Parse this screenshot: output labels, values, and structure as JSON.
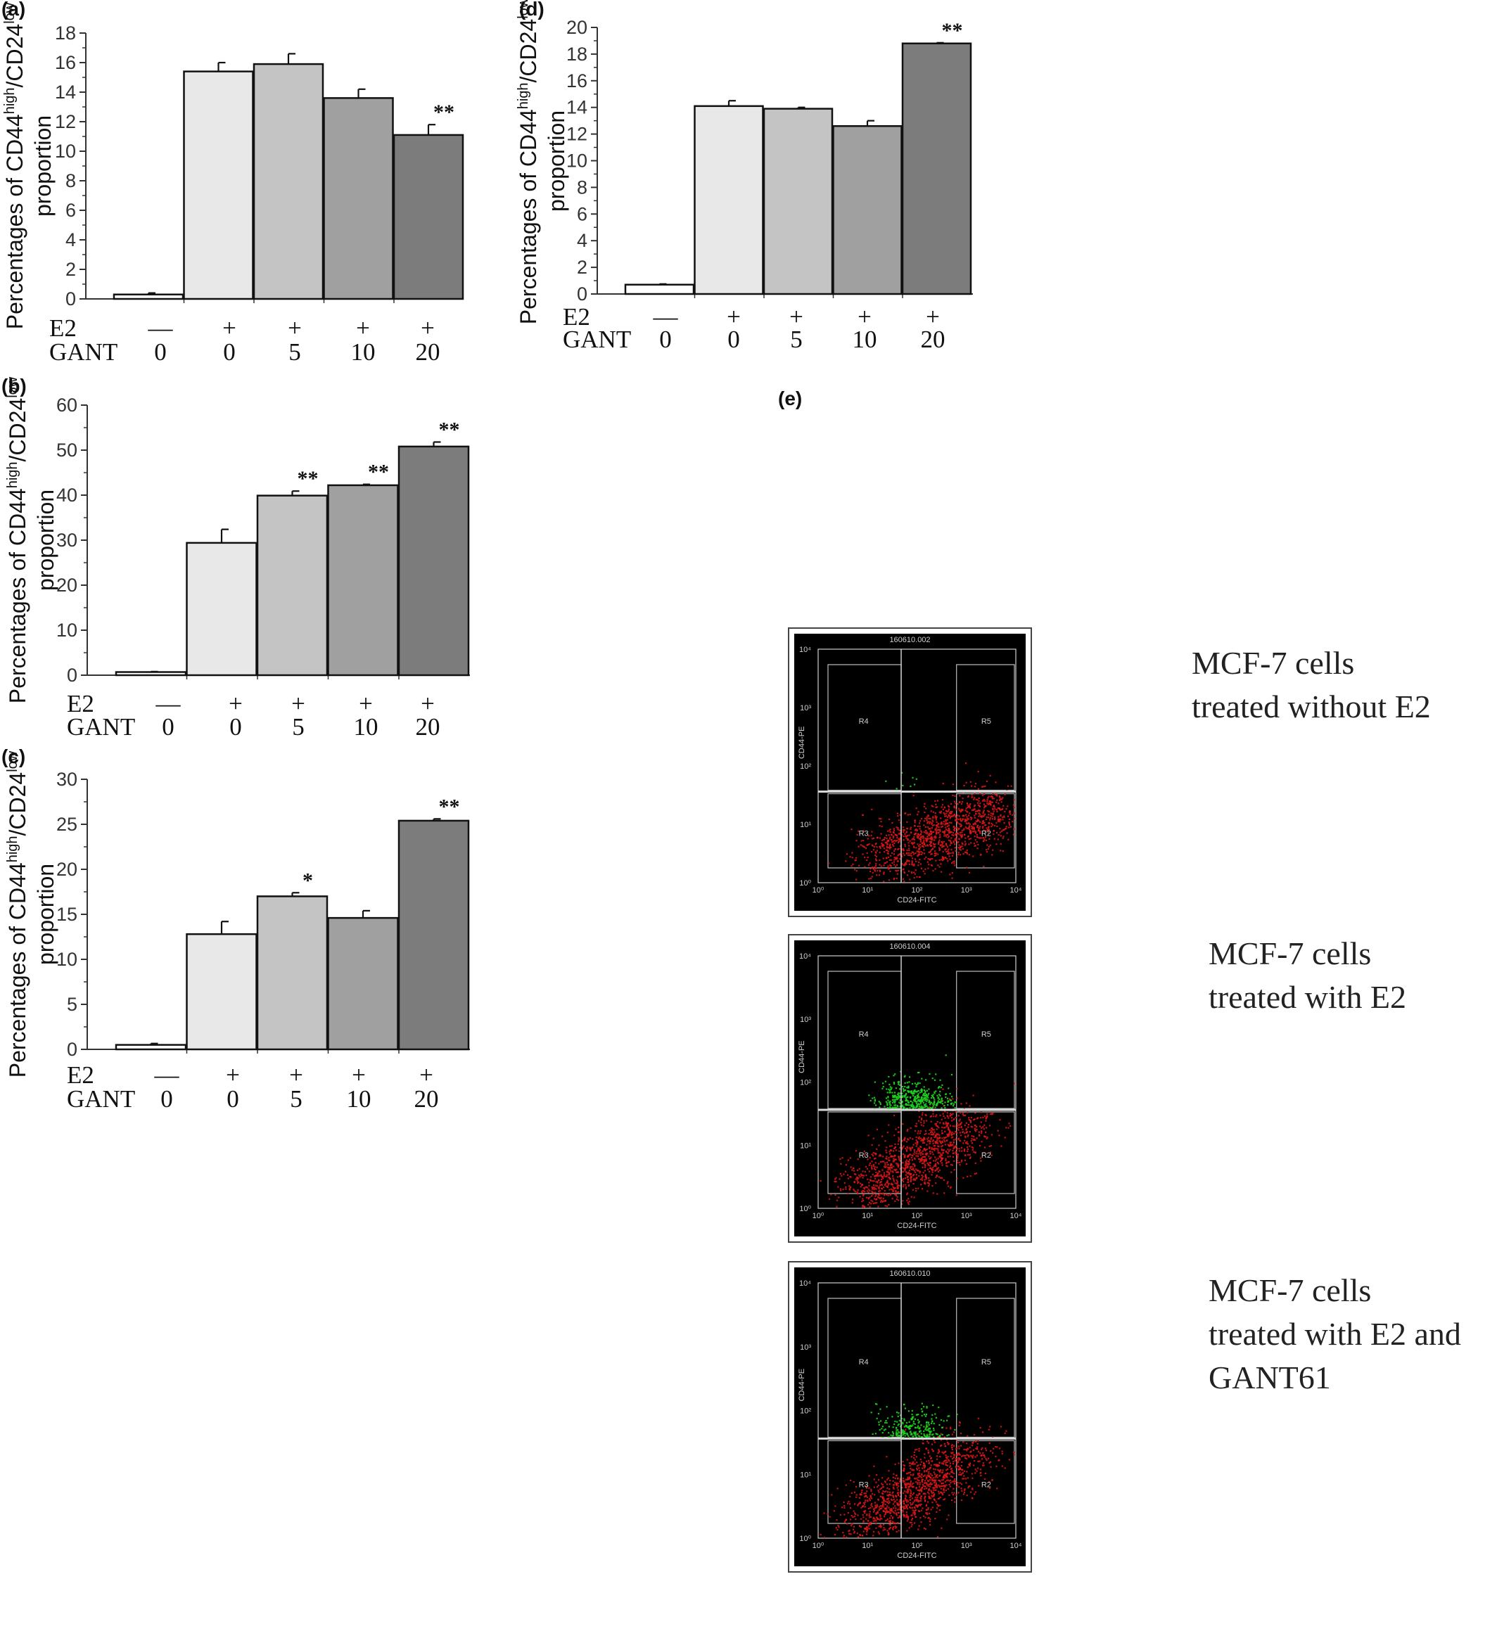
{
  "colors": {
    "bar_fills": [
      "#ffffff",
      "#e8e8e8",
      "#c4c4c4",
      "#a0a0a0",
      "#7c7c7c"
    ],
    "axis": "#333333",
    "flow_bg": "#000000",
    "flow_red": "#e01818",
    "flow_green": "#1fd41f"
  },
  "chart_data": [
    {
      "panel_label": "(a)",
      "type": "bar",
      "ylabel_main": "Percentages of  CD44",
      "ylabel_sup1": "high",
      "ylabel_mid": "/CD24",
      "ylabel_sup2": "low",
      "ylabel_line2": "proportion",
      "ylim": [
        0,
        18
      ],
      "yticks": [
        0,
        2,
        4,
        6,
        8,
        10,
        12,
        14,
        16,
        18
      ],
      "row1_label": "E2",
      "row2_label": "GANT",
      "e2": [
        "—",
        "+",
        "+",
        "+",
        "+"
      ],
      "gant": [
        "0",
        "0",
        "5",
        "10",
        "20"
      ],
      "values": [
        0.3,
        15.4,
        15.9,
        13.6,
        11.1
      ],
      "errors": [
        0.1,
        0.6,
        0.7,
        0.6,
        0.7
      ],
      "significance": [
        "",
        "",
        "",
        "",
        "**"
      ]
    },
    {
      "panel_label": "(b)",
      "type": "bar",
      "ylabel_main": "Percentages of  CD44",
      "ylabel_sup1": "high",
      "ylabel_mid": "/CD24",
      "ylabel_sup2": "low",
      "ylabel_line2": "proportion",
      "ylim": [
        0,
        60
      ],
      "yticks": [
        0,
        10,
        20,
        30,
        40,
        50,
        60
      ],
      "row1_label": "E2",
      "row2_label": "GANT",
      "e2": [
        "—",
        "+",
        "+",
        "+",
        "+"
      ],
      "gant": [
        "0",
        "0",
        "5",
        "10",
        "20"
      ],
      "values": [
        0.7,
        29.4,
        39.9,
        42.2,
        50.8
      ],
      "errors": [
        0.1,
        3.0,
        1.0,
        0.2,
        1.0
      ],
      "significance": [
        "",
        "",
        "**",
        "**",
        "**"
      ]
    },
    {
      "panel_label": "(c)",
      "type": "bar",
      "ylabel_main": "Percentages of CD44",
      "ylabel_sup1": "high",
      "ylabel_mid": "/CD24",
      "ylabel_sup2": "low",
      "ylabel_line2": "proportion",
      "ylim": [
        0,
        30
      ],
      "yticks": [
        0,
        5,
        10,
        15,
        20,
        25,
        30
      ],
      "row1_label": "E2",
      "row2_label": "GANT",
      "e2": [
        "—",
        "+",
        "+",
        "+",
        "+"
      ],
      "gant": [
        "0",
        "0",
        "5",
        "10",
        "20"
      ],
      "values": [
        0.5,
        12.8,
        17.0,
        14.6,
        25.4
      ],
      "errors": [
        0.15,
        1.4,
        0.4,
        0.8,
        0.2
      ],
      "significance": [
        "",
        "",
        "*",
        "",
        "**"
      ]
    },
    {
      "panel_label": "(d)",
      "type": "bar",
      "ylabel_main": "Percentages of  CD44",
      "ylabel_sup1": "high",
      "ylabel_mid": "/CD24",
      "ylabel_sup2": "low",
      "ylabel_line2": "proportion",
      "ylim": [
        0,
        20
      ],
      "yticks": [
        0,
        2,
        4,
        6,
        8,
        10,
        12,
        14,
        16,
        18,
        20
      ],
      "row1_label": "E2",
      "row2_label": "GANT",
      "e2": [
        "—",
        "+",
        "+",
        "+",
        "+"
      ],
      "gant": [
        "0",
        "0",
        "5",
        "10",
        "20"
      ],
      "values": [
        0.7,
        14.1,
        13.9,
        12.6,
        18.8
      ],
      "errors": [
        0.05,
        0.4,
        0.1,
        0.4,
        0.05
      ],
      "significance": [
        "",
        "",
        "",
        "",
        "**"
      ]
    }
  ],
  "panel_e": {
    "label": "(e)",
    "plots": [
      {
        "id": "160610.002",
        "caption": [
          "MCF-7 cells",
          "treated without E2"
        ],
        "green_density": 0.02,
        "regions": [
          "R4",
          "R5",
          "R3",
          "R2"
        ],
        "x_axis_label": "CD24-FITC",
        "y_axis_label": "CD44-PE",
        "x_ticks": [
          "10⁰",
          "10¹",
          "10²",
          "10³",
          "10⁴"
        ],
        "y_ticks": [
          "10⁰",
          "10¹",
          "10²",
          "10³",
          "10⁴"
        ]
      },
      {
        "id": "160610.004",
        "caption": [
          "MCF-7 cells",
          "treated with E2"
        ],
        "green_density": 1.0,
        "regions": [
          "R4",
          "R5",
          "R3",
          "R2"
        ],
        "x_axis_label": "CD24-FITC",
        "y_axis_label": "CD44-PE",
        "x_ticks": [
          "10⁰",
          "10¹",
          "10²",
          "10³",
          "10⁴"
        ],
        "y_ticks": [
          "10⁰",
          "10¹",
          "10²",
          "10³",
          "10⁴"
        ]
      },
      {
        "id": "160610.010",
        "caption": [
          "MCF-7 cells",
          "treated with E2 and",
          "GANT61"
        ],
        "green_density": 0.6,
        "regions": [
          "R4",
          "R5",
          "R3",
          "R2"
        ],
        "x_axis_label": "CD24-FITC",
        "y_axis_label": "CD44-PE",
        "x_ticks": [
          "10⁰",
          "10¹",
          "10²",
          "10³",
          "10⁴"
        ],
        "y_ticks": [
          "10⁰",
          "10¹",
          "10²",
          "10³",
          "10⁴"
        ]
      }
    ]
  }
}
